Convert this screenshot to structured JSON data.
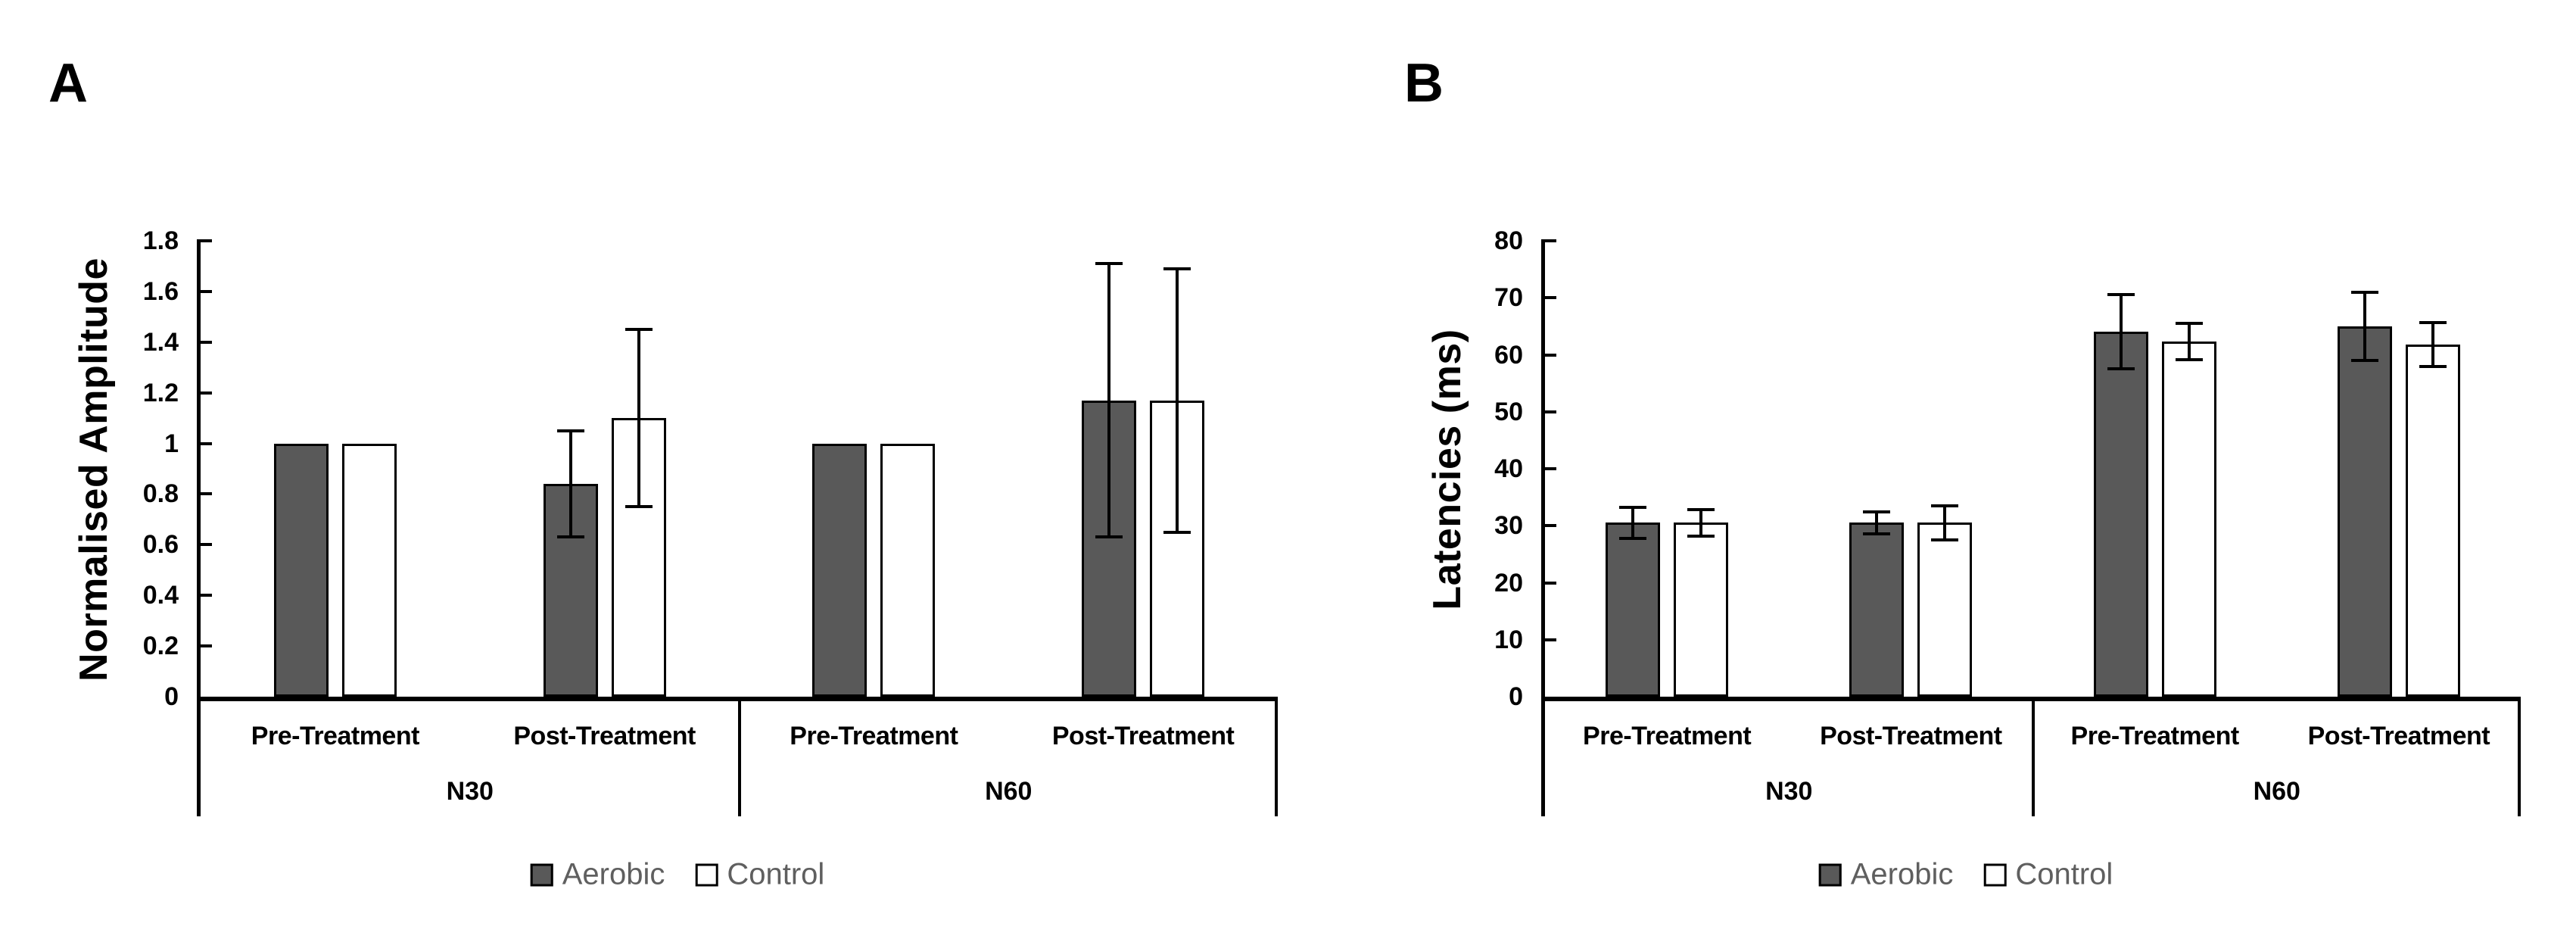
{
  "figure": {
    "background": "#ffffff",
    "panel_count": 2
  },
  "colors": {
    "aerobic_fill": "#595959",
    "control_fill": "#ffffff",
    "bar_border": "#000000",
    "axis": "#000000",
    "legend_text": "#5f5f5f",
    "label_text": "#000000"
  },
  "legend": {
    "items": [
      {
        "label": "Aerobic",
        "fill": "#595959",
        "border": "#000000"
      },
      {
        "label": "Control",
        "fill": "#ffffff",
        "border": "#000000"
      }
    ]
  },
  "chart_data": [
    {
      "type": "bar",
      "panel_label": "A",
      "title": "",
      "xlabel": "",
      "ylabel": "Normalised Amplitude",
      "ylim": [
        0,
        1.8
      ],
      "ytick_step": 0.2,
      "ytick_labels": [
        "0",
        "0.2",
        "0.4",
        "0.6",
        "0.8",
        "1",
        "1.2",
        "1.4",
        "1.6",
        "1.8"
      ],
      "grid": false,
      "legend_position": "bottom",
      "group_labels": [
        "N30",
        "N60"
      ],
      "categories": [
        "Pre-Treatment",
        "Post-Treatment",
        "Pre-Treatment",
        "Post-Treatment"
      ],
      "series": [
        {
          "name": "Aerobic",
          "values": [
            1.0,
            0.84,
            1.0,
            1.17
          ],
          "errors": [
            0,
            0.21,
            0,
            0.54
          ]
        },
        {
          "name": "Control",
          "values": [
            1.0,
            1.1,
            1.0,
            1.17
          ],
          "errors": [
            0,
            0.35,
            0,
            0.52
          ]
        }
      ]
    },
    {
      "type": "bar",
      "panel_label": "B",
      "title": "",
      "xlabel": "",
      "ylabel": "Latencies (ms)",
      "ylim": [
        0,
        80
      ],
      "ytick_step": 10,
      "ytick_labels": [
        "0",
        "10",
        "20",
        "30",
        "40",
        "50",
        "60",
        "70",
        "80"
      ],
      "grid": false,
      "legend_position": "bottom",
      "group_labels": [
        "N30",
        "N60"
      ],
      "categories": [
        "Pre-Treatment",
        "Post-Treatment",
        "Pre-Treatment",
        "Post-Treatment"
      ],
      "series": [
        {
          "name": "Aerobic",
          "values": [
            30.5,
            30.5,
            64.0,
            65.0
          ],
          "errors": [
            2.7,
            1.9,
            6.5,
            6.0
          ]
        },
        {
          "name": "Control",
          "values": [
            30.5,
            30.5,
            62.3,
            61.8
          ],
          "errors": [
            2.3,
            3.0,
            3.2,
            3.8
          ]
        }
      ]
    }
  ]
}
